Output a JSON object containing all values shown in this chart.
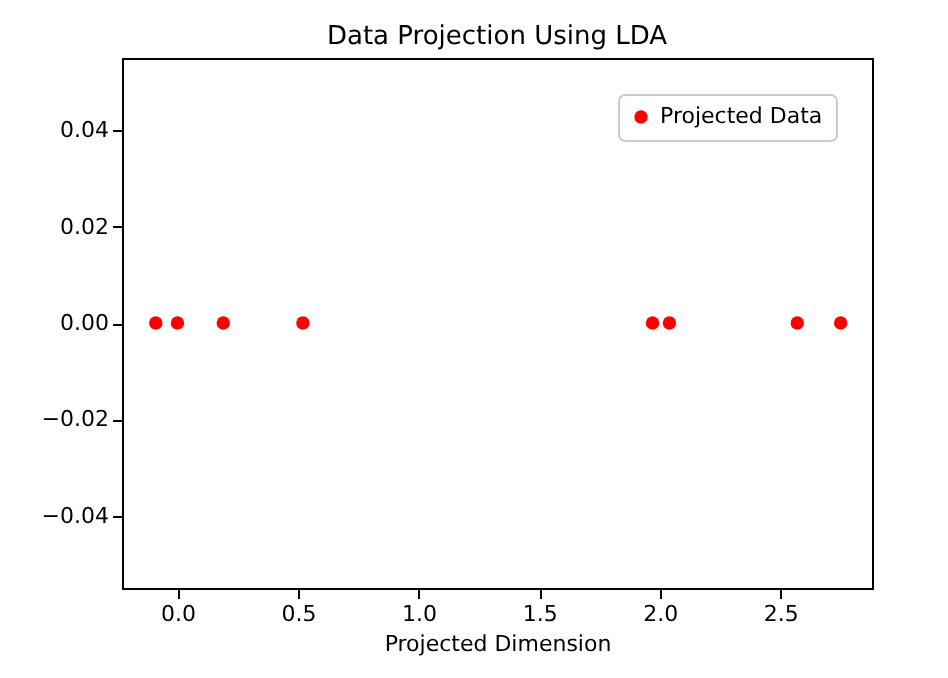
{
  "chart_data": {
    "type": "scatter",
    "title": "Data Projection Using LDA",
    "xlabel": "Projected Dimension",
    "x": [
      -0.09,
      0.0,
      0.19,
      0.52,
      1.97,
      2.04,
      2.57,
      2.75
    ],
    "series": [
      {
        "name": "Projected Data",
        "color": "#ff0000",
        "values": [
          0,
          0,
          0,
          0,
          0,
          0,
          0,
          0
        ]
      }
    ],
    "xlim": [
      -0.23,
      2.88
    ],
    "xticks": [
      {
        "value": 0,
        "label": "0.0"
      },
      0.5,
      {
        "value": 1,
        "label": "1.0"
      },
      1.5,
      {
        "value": 2,
        "label": "2.0"
      },
      2.5
    ],
    "ylim": [
      -0.055,
      0.055
    ],
    "yticks": [
      -0.04,
      -0.02,
      {
        "value": 0,
        "label": "0.00"
      },
      0.02,
      0.04
    ],
    "marker": "circle",
    "legend": "top right",
    "grid": false
  }
}
